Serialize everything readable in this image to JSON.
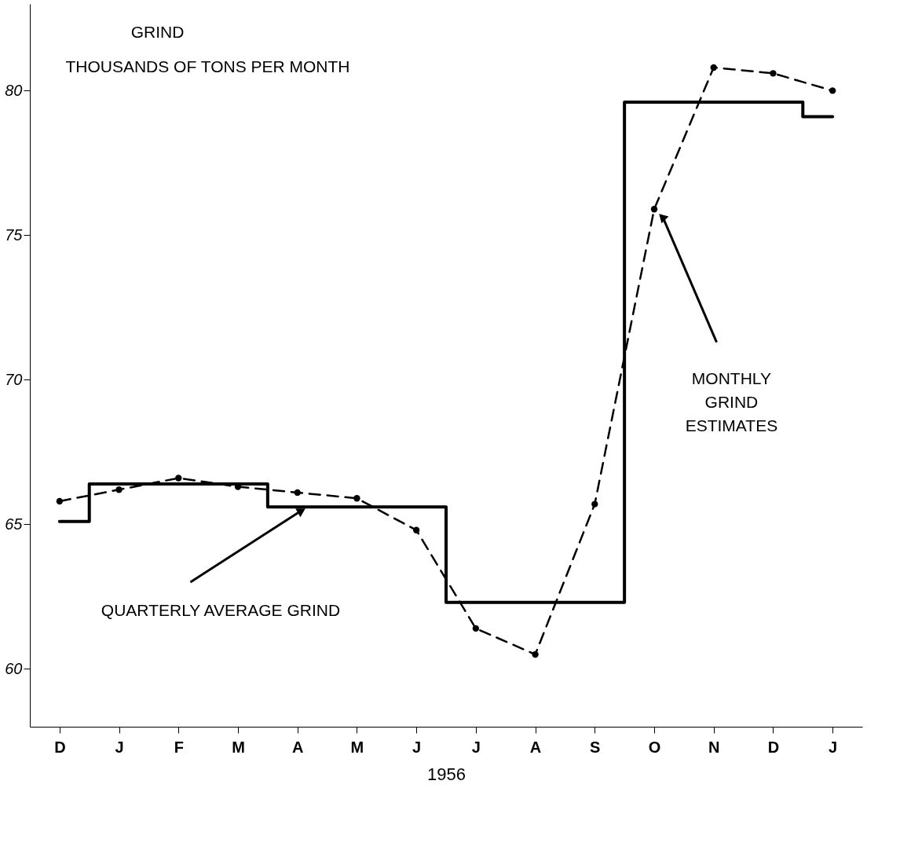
{
  "chart_data": {
    "type": "line",
    "title": "GRIND",
    "subtitle": "THOUSANDS OF TONS PER MONTH",
    "xlabel": "1956",
    "categories": [
      "D",
      "J",
      "F",
      "M",
      "A",
      "M",
      "J",
      "J",
      "A",
      "S",
      "O",
      "N",
      "D",
      "J"
    ],
    "series": [
      {
        "color": "#000000",
        "line_style": "dashed",
        "marker": "circle",
        "values": [
          65.8,
          66.2,
          66.6,
          66.3,
          66.1,
          65.9,
          64.8,
          61.4,
          60.5,
          65.7,
          75.9,
          80.8,
          80.6,
          80.0
        ]
      },
      {
        "type": "step",
        "color": "#000000",
        "line_style": "solid",
        "marker": "none",
        "values": [
          65.1,
          66.4,
          66.4,
          66.4,
          65.6,
          65.6,
          65.6,
          62.3,
          62.3,
          62.3,
          79.6,
          79.6,
          79.6,
          79.1
        ]
      }
    ],
    "annotations": [
      {
        "text": "QUARTERLY AVERAGE GRIND",
        "x": "A",
        "y": 65.6
      },
      "MONTHLY\nGRIND\nESTIMATES"
    ],
    "ylim": [
      58,
      83
    ],
    "yticks": [
      60,
      65,
      70,
      75,
      80
    ],
    "grid": false
  }
}
